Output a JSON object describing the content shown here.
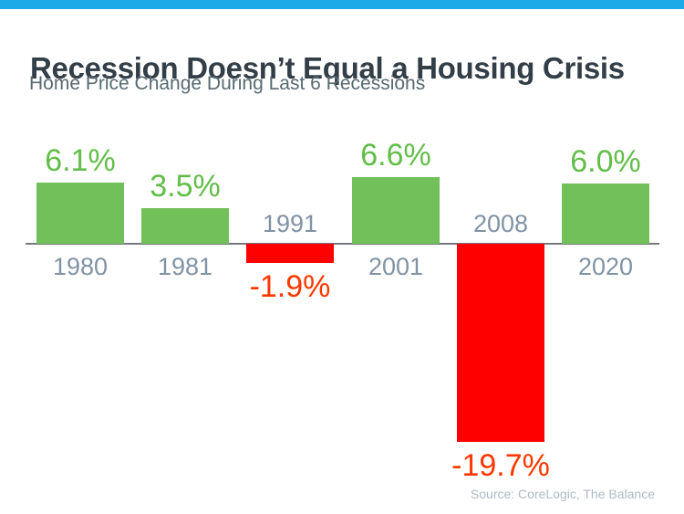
{
  "page": {
    "title": "Recession Doesn’t Equal a Housing Crisis",
    "subtitle": "Home Price Change During Last 6 Recessions",
    "source": "Source: CoreLogic, The Balance"
  },
  "colors": {
    "accent_bar": "#1aabe8",
    "title_text": "#323e48",
    "subtitle_text": "#566a72",
    "year_label_text": "#8093a5",
    "positive_bar": "#71c05a",
    "positive_value_text": "#62bd49",
    "negative_bar": "#ff0000",
    "negative_value_text": "#ff3800",
    "axis_line": "#75787c",
    "source_text": "#aebbc6"
  },
  "chart_data": {
    "type": "bar",
    "title": "Recession Doesn’t Equal a Housing Crisis",
    "subtitle": "Home Price Change During Last 6 Recessions",
    "categories": [
      "1980",
      "1981",
      "1991",
      "2001",
      "2008",
      "2020"
    ],
    "values": [
      6.1,
      3.5,
      -1.9,
      6.6,
      -19.7,
      6.0
    ],
    "value_labels": [
      "6.1%",
      "3.5%",
      "-1.9%",
      "6.6%",
      "-19.7%",
      "6.0%"
    ],
    "units": "percent",
    "ylim": [
      -22,
      8
    ],
    "grid": false,
    "legend": "none",
    "baseline": 0,
    "source": "Source: CoreLogic, The Balance"
  }
}
